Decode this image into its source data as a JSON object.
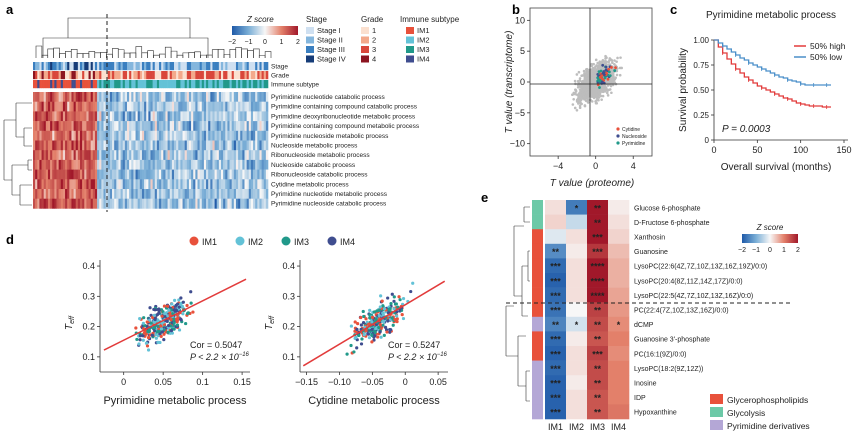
{
  "panels": {
    "a": {
      "label": "a",
      "legend": {
        "zscore_title": "Z score",
        "zscore_ticks": [
          "−2",
          "−1",
          "0",
          "1",
          "2"
        ],
        "stage_title": "Stage",
        "stage_items": [
          "Stage I",
          "Stage II",
          "Stage III",
          "Stage IV"
        ],
        "stage_colors": [
          "#cfe0f1",
          "#84b6dd",
          "#3a7fc0",
          "#163c78"
        ],
        "grade_title": "Grade",
        "grade_items": [
          "1",
          "2",
          "3",
          "4"
        ],
        "grade_colors": [
          "#fbe0cf",
          "#f3a98b",
          "#d9473b",
          "#8c1420"
        ],
        "immune_title": "Immune subtype",
        "immune_items": [
          "IM1",
          "IM2",
          "IM3",
          "IM4"
        ],
        "immune_colors": [
          "#e8513b",
          "#63c2d7",
          "#21998a",
          "#3f4d8f"
        ]
      },
      "track_labels": [
        "Stage",
        "Grade",
        "Immune subtype"
      ],
      "rows": [
        "Pyrimidine nucleotide catabolic process",
        "Pyrimidine containing compound catabolic process",
        "Pyrimidine deoxyribonucleotide metabolic process",
        "Pyrimidine containing compound metabolic process",
        "Pyrimidine nucleoside metabolic process",
        "Nucleoside metabolic process",
        "Ribonucleoside metabolic process",
        "Nucleoside catabolic process",
        "Ribonucleoside catabolic process",
        "Cytidine metabolic process",
        "Pyrimidine nucleotide metabolic process",
        "Pyrimidine nucleoside catabolic process"
      ]
    },
    "b": {
      "label": "b",
      "chart_data": {
        "type": "scatter",
        "xlabel": "T value (proteome)",
        "ylabel": "T value (transcriptome)",
        "xticks": [
          "−4",
          "0",
          "4"
        ],
        "yticks": [
          "10",
          "5",
          "0",
          "−5",
          "−10"
        ],
        "xlim": [
          -7,
          6
        ],
        "ylim": [
          -12,
          12
        ],
        "legend": [
          "Cytidine",
          "Nucleoside",
          "Pyrimidine"
        ],
        "legend_colors": [
          "#e8513b",
          "#3f4d8f",
          "#21998a"
        ]
      }
    },
    "c": {
      "label": "c",
      "chart_data": {
        "type": "line",
        "title": "Pyrimidine metabolic process",
        "xlabel": "Overall survival (months)",
        "ylabel": "Survival probability",
        "xticks": [
          "0",
          "50",
          "100",
          "150"
        ],
        "yticks": [
          "1.00",
          "0.75",
          "0.50",
          "0.25",
          "0"
        ],
        "series": [
          {
            "name": "50% high",
            "color": "#e23b3b",
            "x": [
              0,
              5,
              10,
              15,
              20,
              25,
              30,
              35,
              40,
              45,
              50,
              55,
              60,
              65,
              70,
              75,
              80,
              85,
              90,
              95,
              100,
              105,
              110,
              115,
              120,
              125,
              130,
              135
            ],
            "y": [
              1.0,
              0.93,
              0.87,
              0.81,
              0.76,
              0.71,
              0.67,
              0.63,
              0.6,
              0.57,
              0.54,
              0.52,
              0.5,
              0.48,
              0.46,
              0.44,
              0.42,
              0.41,
              0.39,
              0.37,
              0.36,
              0.35,
              0.34,
              0.34,
              0.34,
              0.33,
              0.33,
              0.33
            ]
          },
          {
            "name": "50% low",
            "color": "#4a8fc9",
            "x": [
              0,
              5,
              10,
              15,
              20,
              25,
              30,
              35,
              40,
              45,
              50,
              55,
              60,
              65,
              70,
              75,
              80,
              85,
              90,
              95,
              100,
              105,
              110,
              115,
              120,
              125,
              130,
              135
            ],
            "y": [
              1.0,
              0.97,
              0.94,
              0.91,
              0.88,
              0.85,
              0.82,
              0.8,
              0.77,
              0.75,
              0.73,
              0.71,
              0.69,
              0.67,
              0.65,
              0.63,
              0.62,
              0.6,
              0.59,
              0.58,
              0.56,
              0.55,
              0.55,
              0.55,
              0.55,
              0.55,
              0.55,
              0.55
            ]
          }
        ],
        "pvalue": "P = 0.0003"
      }
    },
    "d": {
      "label": "d",
      "legend": [
        "IM1",
        "IM2",
        "IM3",
        "IM4"
      ],
      "legend_colors": [
        "#e8513b",
        "#63c2d7",
        "#21998a",
        "#3f4d8f"
      ],
      "plots": [
        {
          "xlabel": "Pyrimidine metabolic process",
          "ylabel": "T_eff",
          "xticks": [
            "0",
            "0.05",
            "0.1",
            "0.15"
          ],
          "yticks": [
            "0.4",
            "0.3",
            "0.2",
            "0.1"
          ],
          "cor": "Cor = 0.5047",
          "p": "P < 2.2 × 10",
          "pexp": "−16"
        },
        {
          "xlabel": "Cytidine metabolic process",
          "ylabel": "T_eff",
          "xticks": [
            "−0.15",
            "−0.10",
            "−0.05",
            "0",
            "0.05"
          ],
          "yticks": [
            "0.4",
            "0.3",
            "0.2",
            "0.1"
          ],
          "cor": "Cor = 0.5247",
          "p": "P < 2.2 × 10",
          "pexp": "−16"
        }
      ]
    },
    "e": {
      "label": "e",
      "zscore_title": "Z score",
      "zscore_ticks": [
        "−2",
        "−1",
        "0",
        "1",
        "2"
      ],
      "columns": [
        "IM1",
        "IM2",
        "IM3",
        "IM4"
      ],
      "rows": [
        {
          "name": "Glucose 6-phosphate",
          "stars": [
            "",
            "*",
            "**",
            ""
          ],
          "z": [
            0.2,
            -1.6,
            2.0,
            0.1
          ],
          "cls": 1
        },
        {
          "name": "D-Fructose 6-phosphate",
          "stars": [
            "",
            "",
            "**",
            ""
          ],
          "z": [
            0.3,
            -0.4,
            2.0,
            0.2
          ],
          "cls": 1
        },
        {
          "name": "Xanthosin",
          "stars": [
            "",
            "",
            "***",
            ""
          ],
          "z": [
            -0.2,
            0.2,
            2.0,
            0.3
          ],
          "cls": 0
        },
        {
          "name": "Guanosine",
          "stars": [
            "**",
            "",
            "***",
            ""
          ],
          "z": [
            -1.4,
            0.1,
            1.7,
            0.5
          ],
          "cls": 0
        },
        {
          "name": "LysoPC(22:6(4Z,7Z,10Z,13Z,16Z,19Z)/0:0)",
          "stars": [
            "***",
            "",
            "****",
            ""
          ],
          "z": [
            -1.8,
            0.2,
            2.0,
            0.6
          ],
          "cls": 0
        },
        {
          "name": "LysoPC(20:4(8Z,11Z,14Z,17Z)/0:0)",
          "stars": [
            "***",
            "",
            "****",
            ""
          ],
          "z": [
            -1.9,
            0.2,
            2.0,
            0.6
          ],
          "cls": 0
        },
        {
          "name": "LysoPC(22:5(4Z,7Z,10Z,13Z,16Z)/0:0)",
          "stars": [
            "***",
            "",
            "****",
            ""
          ],
          "z": [
            -1.8,
            0.2,
            2.0,
            0.7
          ],
          "cls": 0
        },
        {
          "name": "PC(22:4(7Z,10Z,13Z,16Z)/0:0)",
          "stars": [
            "***",
            "",
            "**",
            ""
          ],
          "z": [
            -1.7,
            0.0,
            1.6,
            0.8
          ],
          "cls": 0
        },
        {
          "name": "dCMP",
          "stars": [
            "**",
            "*",
            "**",
            "*"
          ],
          "z": [
            -1.5,
            -0.3,
            1.5,
            0.9
          ],
          "cls": 2
        },
        {
          "name": "Guanosine 3'-phosphate",
          "stars": [
            "***",
            "",
            "**",
            ""
          ],
          "z": [
            -1.8,
            0.1,
            1.4,
            1.0
          ],
          "cls": 0
        },
        {
          "name": "PC(16:1(9Z)/0:0)",
          "stars": [
            "***",
            "",
            "***",
            ""
          ],
          "z": [
            -1.9,
            0.2,
            1.6,
            0.9
          ],
          "cls": 0
        },
        {
          "name": "LysoPC(18:2(9Z,12Z))",
          "stars": [
            "***",
            "",
            "**",
            ""
          ],
          "z": [
            -1.8,
            0.2,
            1.5,
            1.0
          ],
          "cls": 2
        },
        {
          "name": "Inosine",
          "stars": [
            "***",
            "",
            "**",
            ""
          ],
          "z": [
            -1.9,
            0.1,
            1.5,
            1.0
          ],
          "cls": 2
        },
        {
          "name": "IDP",
          "stars": [
            "***",
            "",
            "**",
            ""
          ],
          "z": [
            -1.9,
            0.2,
            1.4,
            1.0
          ],
          "cls": 2
        },
        {
          "name": "Hypoxanthine",
          "stars": [
            "***",
            "",
            "**",
            ""
          ],
          "z": [
            -1.9,
            0.2,
            1.4,
            1.1
          ],
          "cls": 2
        }
      ],
      "class_legend": [
        "Glycerophospholipids",
        "Glycolysis",
        "Pyrimidine derivatives"
      ],
      "class_colors": [
        "#e8513b",
        "#6cc9a7",
        "#b4a7d6"
      ]
    }
  }
}
